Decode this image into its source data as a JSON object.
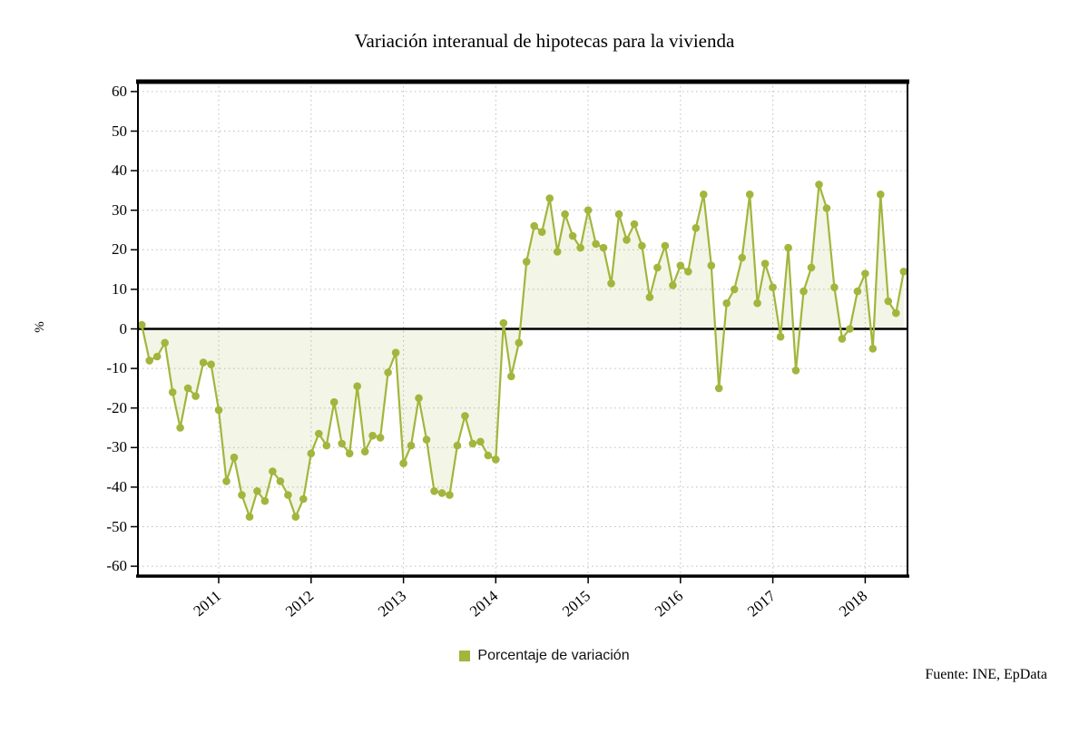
{
  "title": "Variación interanual de hipotecas para la vivienda",
  "ylabel": "%",
  "legend": {
    "label": "Porcentaje de variación",
    "marker_color": "#a3b53c"
  },
  "source": "Fuente: INE, EpData",
  "chart_data": {
    "type": "line",
    "title": "Variación interanual de hipotecas para la vivienda",
    "ylabel": "%",
    "unit": "%",
    "frequency": "monthly",
    "x_range": [
      "2010-03",
      "2018-06"
    ],
    "ylim": [
      -62.5,
      62.5
    ],
    "yticks": [
      60,
      50,
      40,
      30,
      20,
      10,
      0,
      -10,
      -20,
      -30,
      -40,
      -50,
      -60
    ],
    "xticks": [
      {
        "label": "2011",
        "index": 10
      },
      {
        "label": "2012",
        "index": 22
      },
      {
        "label": "2013",
        "index": 34
      },
      {
        "label": "2014",
        "index": 46
      },
      {
        "label": "2015",
        "index": 58
      },
      {
        "label": "2016",
        "index": 70
      },
      {
        "label": "2017",
        "index": 82
      },
      {
        "label": "2018",
        "index": 94
      }
    ],
    "grid": "dotted",
    "grid_color": "#bdbdbd",
    "zero_line": true,
    "fill_to_zero": true,
    "fill_opacity": 0.13,
    "legend_position": "bottom-center",
    "series": [
      {
        "name": "Porcentaje de variación",
        "color": "#a3b53c",
        "values": [
          1,
          -8,
          -7,
          -3.5,
          -16,
          -25,
          -15,
          -17,
          -8.5,
          -9,
          -20.5,
          -38.5,
          -32.5,
          -42,
          -47.5,
          -41,
          -43.5,
          -36,
          -38.5,
          -42,
          -47.5,
          -43,
          -31.5,
          -26.5,
          -29.5,
          -18.5,
          -29,
          -31.5,
          -14.5,
          -31,
          -27,
          -27.5,
          -11,
          -6,
          -34,
          -29.5,
          -17.5,
          -28,
          -41,
          -41.5,
          -42,
          -29.5,
          -22,
          -29,
          -28.5,
          -32,
          -33,
          1.5,
          -12,
          -3.5,
          17,
          26,
          24.5,
          33,
          19.5,
          29,
          23.5,
          20.5,
          30,
          21.5,
          20.5,
          11.5,
          29,
          22.5,
          26.5,
          21,
          8,
          15.5,
          21,
          11,
          16,
          14.5,
          25.5,
          34,
          16,
          -15,
          6.5,
          10,
          18,
          34,
          6.5,
          16.5,
          10.5,
          -2,
          20.5,
          -10.5,
          9.5,
          15.5,
          36.5,
          30.5,
          10.5,
          -2.5,
          0,
          9.5,
          14,
          -5,
          34,
          7,
          4,
          14.5
        ]
      }
    ]
  }
}
